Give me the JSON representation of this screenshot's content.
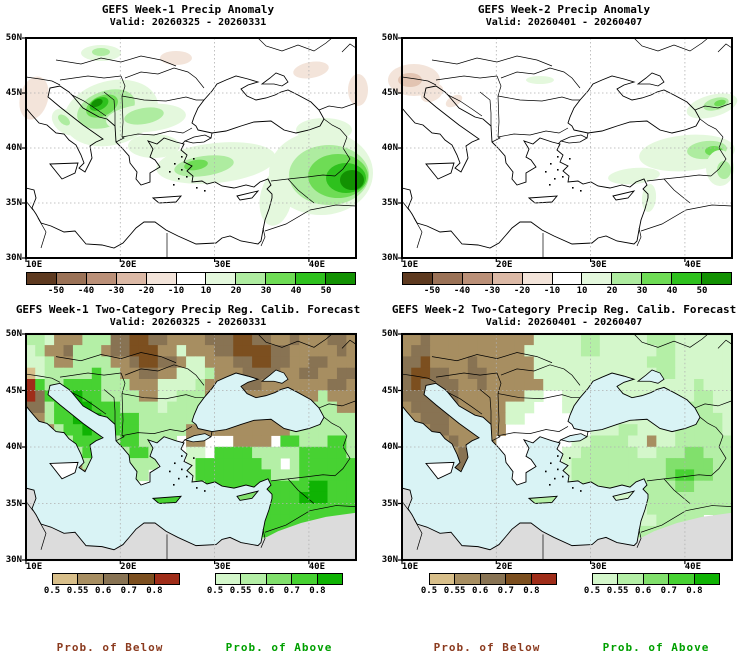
{
  "panels": [
    {
      "id": "week1-anomaly",
      "title": "GEFS Week-1 Precip Anomaly",
      "valid": "Valid: 20260325 - 20260331",
      "kind": "anomaly",
      "blobs": [
        [
          75,
          15,
          20,
          8,
          0,
          "#e4f8dd"
        ],
        [
          75,
          14,
          9,
          4,
          0,
          "#aeeca0"
        ],
        [
          85,
          75,
          48,
          32,
          -15,
          "#e4f8dd"
        ],
        [
          80,
          71,
          30,
          18,
          -20,
          "#aeeca0"
        ],
        [
          76,
          68,
          17,
          10,
          -25,
          "#6edc55"
        ],
        [
          73,
          66,
          10,
          6,
          -25,
          "#2ec11d"
        ],
        [
          71,
          65,
          6,
          3.5,
          -25,
          "#129102"
        ],
        [
          120,
          80,
          40,
          14,
          -5,
          "#e4f8dd"
        ],
        [
          118,
          78,
          20,
          8,
          -10,
          "#aeeca0"
        ],
        [
          40,
          84,
          16,
          11,
          40,
          "#e4f8dd"
        ],
        [
          38,
          82,
          7,
          4,
          40,
          "#aeeca0"
        ],
        [
          128,
          108,
          26,
          12,
          0,
          "#e4f8dd"
        ],
        [
          190,
          125,
          60,
          20,
          -6,
          "#e4f8dd"
        ],
        [
          178,
          128,
          30,
          10,
          -8,
          "#aeeca0"
        ],
        [
          170,
          127,
          12,
          5,
          -10,
          "#6edc55"
        ],
        [
          250,
          160,
          16,
          28,
          10,
          "#e4f8dd"
        ],
        [
          295,
          135,
          52,
          42,
          0,
          "#e4f8dd"
        ],
        [
          303,
          137,
          40,
          30,
          0,
          "#aeeca0"
        ],
        [
          312,
          138,
          30,
          22,
          0,
          "#6edc55"
        ],
        [
          320,
          140,
          20,
          15,
          0,
          "#2ec11d"
        ],
        [
          326,
          142,
          12,
          10,
          0,
          "#129102"
        ],
        [
          298,
          92,
          28,
          12,
          0,
          "#e4f8dd"
        ],
        [
          8,
          60,
          14,
          22,
          15,
          "#f3e4da"
        ],
        [
          150,
          20,
          16,
          7,
          0,
          "#f3e4da"
        ],
        [
          285,
          32,
          18,
          8,
          -10,
          "#f3e4da"
        ],
        [
          332,
          52,
          10,
          16,
          0,
          "#f3e4da"
        ]
      ]
    },
    {
      "id": "week2-anomaly",
      "title": "GEFS Week-2 Precip Anomaly",
      "valid": "Valid: 20260401 - 20260407",
      "kind": "anomaly",
      "blobs": [
        [
          12,
          42,
          26,
          16,
          0,
          "#f3e4da"
        ],
        [
          8,
          42,
          12,
          7,
          0,
          "#e2c4b2"
        ],
        [
          30,
          55,
          12,
          8,
          -30,
          "#f3e4da"
        ],
        [
          52,
          63,
          9,
          5,
          -30,
          "#f3e4da"
        ],
        [
          138,
          42,
          14,
          4,
          0,
          "#e4f8dd"
        ],
        [
          310,
          68,
          26,
          11,
          -15,
          "#e4f8dd"
        ],
        [
          314,
          66,
          13,
          6,
          -15,
          "#aeeca0"
        ],
        [
          318,
          65,
          6,
          3,
          -15,
          "#6edc55"
        ],
        [
          285,
          115,
          48,
          18,
          -5,
          "#e4f8dd"
        ],
        [
          305,
          112,
          20,
          9,
          -5,
          "#aeeca0"
        ],
        [
          312,
          113,
          9,
          5,
          0,
          "#6edc55"
        ],
        [
          318,
          130,
          14,
          18,
          0,
          "#e4f8dd"
        ],
        [
          322,
          132,
          7,
          9,
          0,
          "#aeeca0"
        ],
        [
          232,
          138,
          26,
          8,
          -5,
          "#e4f8dd"
        ],
        [
          247,
          160,
          7,
          14,
          5,
          "#e4f8dd"
        ]
      ]
    },
    {
      "id": "week1-twocat",
      "title": "GEFS Week-1 Two-Category Precip Reg. Calib. Forecast",
      "valid": "Valid: 20260325 - 20260331",
      "kind": "twocat",
      "islands": {
        "sicily": "#ffffff",
        "crete": "#47d232",
        "cyprus": "#81e06c"
      },
      "grid": [
        "BBAbbbBBBccddccbbbbcccddccbbcbbbccb",
        "ABbbcBBBbccdddbbAbbbccddddccbbbbbcb",
        "AABbbBBBBbbcddccbAAbbbccddccbbccbbb",
        "aABBBBBDBBbbccbbAAABbbbccccbbccbbcc",
        "eDBBDDDDBBBbbbAAAABbbbbccbbbbbbbccb",
        "ecDDDEDDBBBBbbAABBBbbbbbbbbbbbbBbbb",
        "ccBDDEEDDDBBBBABBBBBbbbbbbbbbbBBBbb",
        "bbBDDEEEDDDDBBBBBBBbbbbbbbbbbBBBBBB",
        "bbbBDDEDDDDDBBBBBbbbbbbbbbbbBBBBBBB",
        "AbbbBDDDBBDDBBBB.bb...bbbb.DDBBBDDB",
        "ABBbbBDDBBBDDBB..AA.DDDDBBBBBDDDDDB",
        ".ABBbbBBDBBBBB...ADDDDDDDBB.BDDDDDD",
        "..A.bbbBBBABB....ADDDDDDDDBBBDDDDDD",
        "...A..bBBA.A.....ABDDDDDDDDDDDEEDDD",
        "..............A..ABBDDDBBDDDDEEEDDD",
        "..................ABBBBBDDDDDDDDDDD",
        ".....................BBDDDDDDDDDDDD",
        ".......................BDDDDDDBBBBB",
        ".........................BBBBBBBBB.",
        "..................................."
      ]
    },
    {
      "id": "week2-twocat",
      "title": "GEFS Week-2 Two-Category Precip Reg. Calib. Forecast",
      "valid": "Valid: 20260401 - 20260407",
      "kind": "twocat",
      "islands": {
        "sicily": "#ffffff",
        "crete": "#b4efa6",
        "cyprus": "#d4f7cb"
      },
      "grid": [
        "bbcbbbbbbbbbbbAAAAABBAAAAABBBAAAAAA",
        "bccbbbbbbbbbbAAAAAABBAAAAAABBAAAAAA",
        "ccdbbbbcbbbbbbAAAAAAAAAAAABBBAAAAAA",
        "cddccbbccbbbbbAAAAAAAAAAAAABBAAAAAA",
        "cdccccbbcbbbbbbAAAAAAAAAAAAAAAABAAA",
        "ccccccbbbbbbbAA..AAAAAAAAAAAAAABBAA",
        "bcccccbbbbbAAA...AAAAAAAAAAAAABBBAA",
        "bbcccbbbbbbAA......AAAAAAAAAAABBBBA",
        "bbbccbbbbbb.........AAABBAAAABBBBBA",
        ".bbbbcbbbb........AABBBBAAbAABBBBBB",
        ".bbbbbcbbb.......AABBBBBBAABBBCCBBB",
        "..bbbcccbbb......ABBBBBBBBBBCCCCCBB",
        "...b.bbcbbb......ABBBBBBBBBBCDDCCBB",
        "....A..bbA.A.....AABBBBBBBBBBCCBBBB",
        "..............A..AABBBBAABBBBBBBBBB",
        "..................AABBBAAABBBBBBBBB",
        ".....................ABBBAABBBBB.BB",
        ".......................ABBBBBA.AABB",
        ".........................AAAAAA..A.",
        "..................................."
      ]
    }
  ],
  "axes": {
    "lat": [
      "50N",
      "45N",
      "40N",
      "35N",
      "30N"
    ],
    "lon": [
      "10E",
      "20E",
      "30E",
      "40E"
    ]
  },
  "anomaly_colorbar": {
    "ticks": [
      "-50",
      "-40",
      "-30",
      "-20",
      "-10",
      "10",
      "20",
      "30",
      "40",
      "50"
    ],
    "colors": [
      "#5e3a20",
      "#9b7257",
      "#bb9078",
      "#dcb9a6",
      "#f3e4da",
      "#ffffff",
      "#e4f8dd",
      "#aeeca0",
      "#6edc55",
      "#2ec11d",
      "#129102"
    ]
  },
  "prob_below_colorbar": {
    "ticks": [
      "0.5",
      "0.55",
      "0.6",
      "0.7",
      "0.8"
    ],
    "colors": [
      "#d8bf8a",
      "#a78e61",
      "#887353",
      "#7c4f1f",
      "#9f2d19"
    ]
  },
  "prob_above_colorbar": {
    "ticks": [
      "0.5",
      "0.55",
      "0.6",
      "0.7",
      "0.8"
    ],
    "colors": [
      "#d4f7cb",
      "#b4efa6",
      "#81e06c",
      "#47d232",
      "#0fb303"
    ]
  },
  "captions": {
    "below": "Prob. of Below",
    "above": "Prob. of Above",
    "below_color": "#8b3a1e",
    "above_color": "#00a000"
  },
  "cell_palette": {
    "a": "#d8bf8a",
    "b": "#a78e61",
    "c": "#887353",
    "d": "#7c4f1f",
    "e": "#9f2d19",
    "A": "#d4f7cb",
    "B": "#b4efa6",
    "C": "#81e06c",
    "D": "#47d232",
    "E": "#0fb303"
  },
  "map_colors": {
    "sea": "#d9f3f5",
    "dry_mask": "#dcdcdc",
    "coast": "#000000",
    "gridline": "#b0b0b0"
  }
}
